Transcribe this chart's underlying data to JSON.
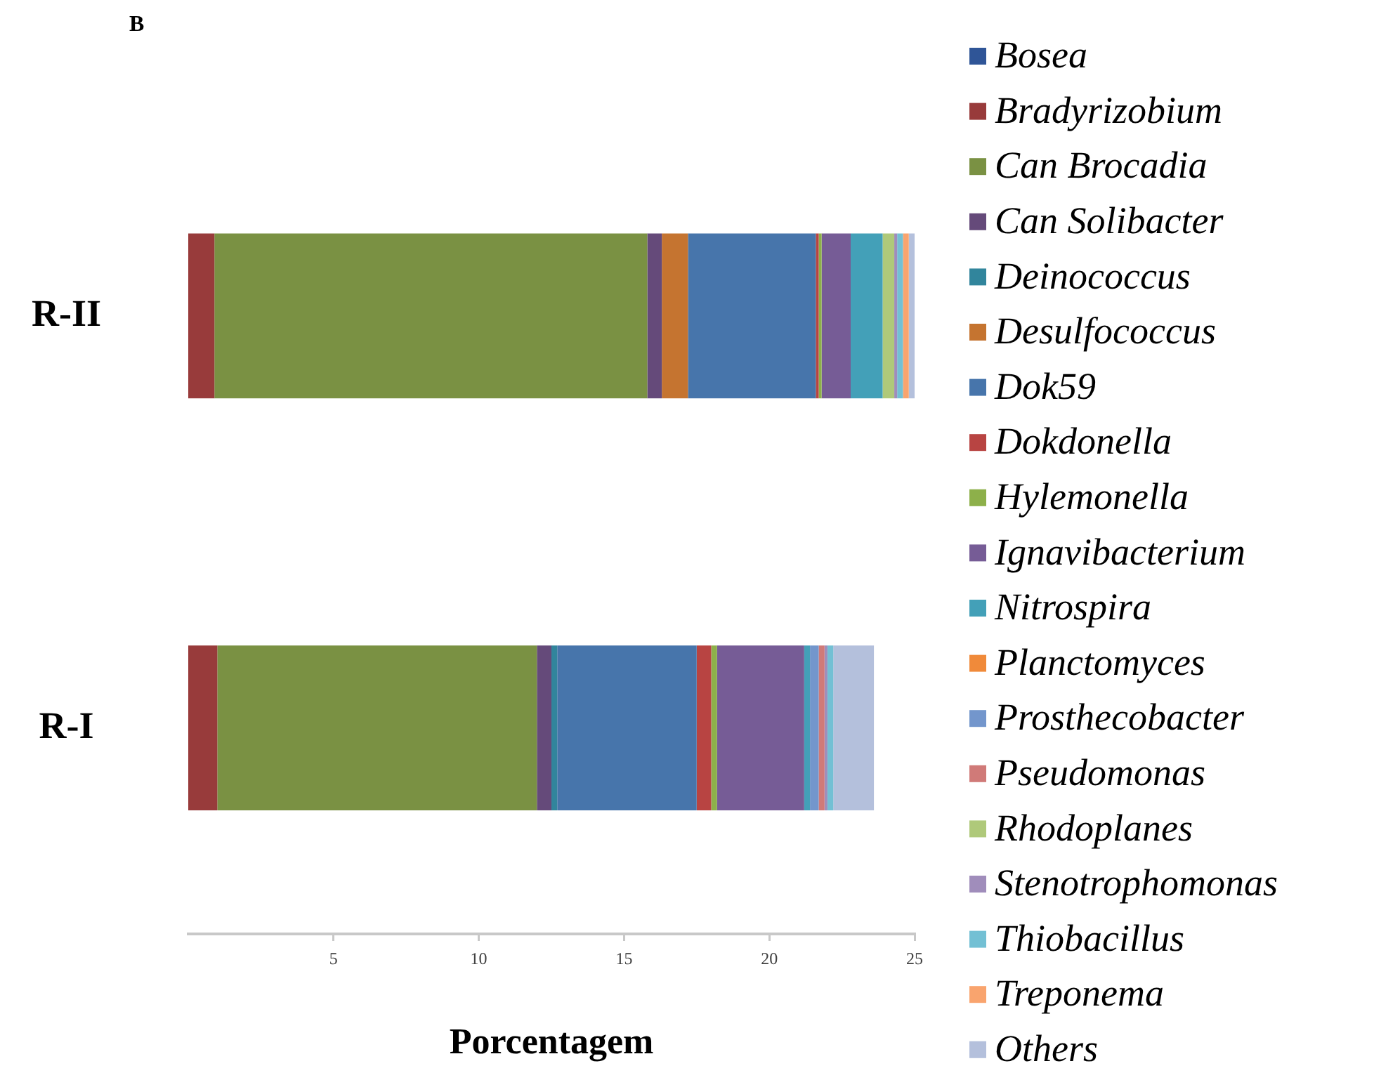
{
  "chart_data": {
    "type": "bar",
    "orientation": "horizontal",
    "stacked": true,
    "title": "B",
    "xlabel": "Porcentagem",
    "categories": [
      "R-II",
      "R-I"
    ],
    "xlim": [
      0,
      25
    ],
    "xticks": [
      5,
      10,
      15,
      20,
      25
    ],
    "legend": "right",
    "series": [
      {
        "name": "Bosea",
        "color": "#2f5597",
        "values": [
          null,
          null
        ]
      },
      {
        "name": "Bradyrizobium",
        "color": "#983b3b",
        "values": [
          0.9,
          1.0
        ]
      },
      {
        "name": "Can Brocadia",
        "color": "#7a9143",
        "values": [
          14.9,
          11.0
        ]
      },
      {
        "name": "Can Solibacter",
        "color": "#654a7a",
        "values": [
          0.5,
          0.5
        ]
      },
      {
        "name": "Deinococcus",
        "color": "#31859c",
        "values": [
          null,
          0.2
        ]
      },
      {
        "name": "Desulfococcus",
        "color": "#c57430",
        "values": [
          0.9,
          null
        ]
      },
      {
        "name": "Dok59",
        "color": "#4775ab",
        "values": [
          4.4,
          4.8
        ]
      },
      {
        "name": "Dokdonella",
        "color": "#b84442",
        "values": [
          0.1,
          0.5
        ]
      },
      {
        "name": "Hylemonella",
        "color": "#8db04a",
        "values": [
          0.1,
          0.2
        ]
      },
      {
        "name": "Ignavibacterium",
        "color": "#765c96",
        "values": [
          1.0,
          3.0
        ]
      },
      {
        "name": "Nitrospira",
        "color": "#43a0b8",
        "values": [
          1.1,
          0.2
        ]
      },
      {
        "name": "Planctomyces",
        "color": "#f08a3a",
        "values": [
          null,
          null
        ]
      },
      {
        "name": "Prosthecobacter",
        "color": "#7396cc",
        "values": [
          null,
          0.3
        ]
      },
      {
        "name": "Pseudomonas",
        "color": "#d07a78",
        "values": [
          null,
          0.2
        ]
      },
      {
        "name": "Rhodoplanes",
        "color": "#afc97a",
        "values": [
          0.4,
          null
        ]
      },
      {
        "name": "Stenotrophomonas",
        "color": "#a08dbb",
        "values": [
          0.1,
          0.1
        ]
      },
      {
        "name": "Thiobacillus",
        "color": "#73c0d4",
        "values": [
          0.2,
          0.2
        ]
      },
      {
        "name": "Treponema",
        "color": "#f9a46e",
        "values": [
          0.2,
          null
        ]
      },
      {
        "name": "Others",
        "color": "#b4c0dc",
        "values": [
          0.2,
          1.4
        ]
      }
    ]
  }
}
